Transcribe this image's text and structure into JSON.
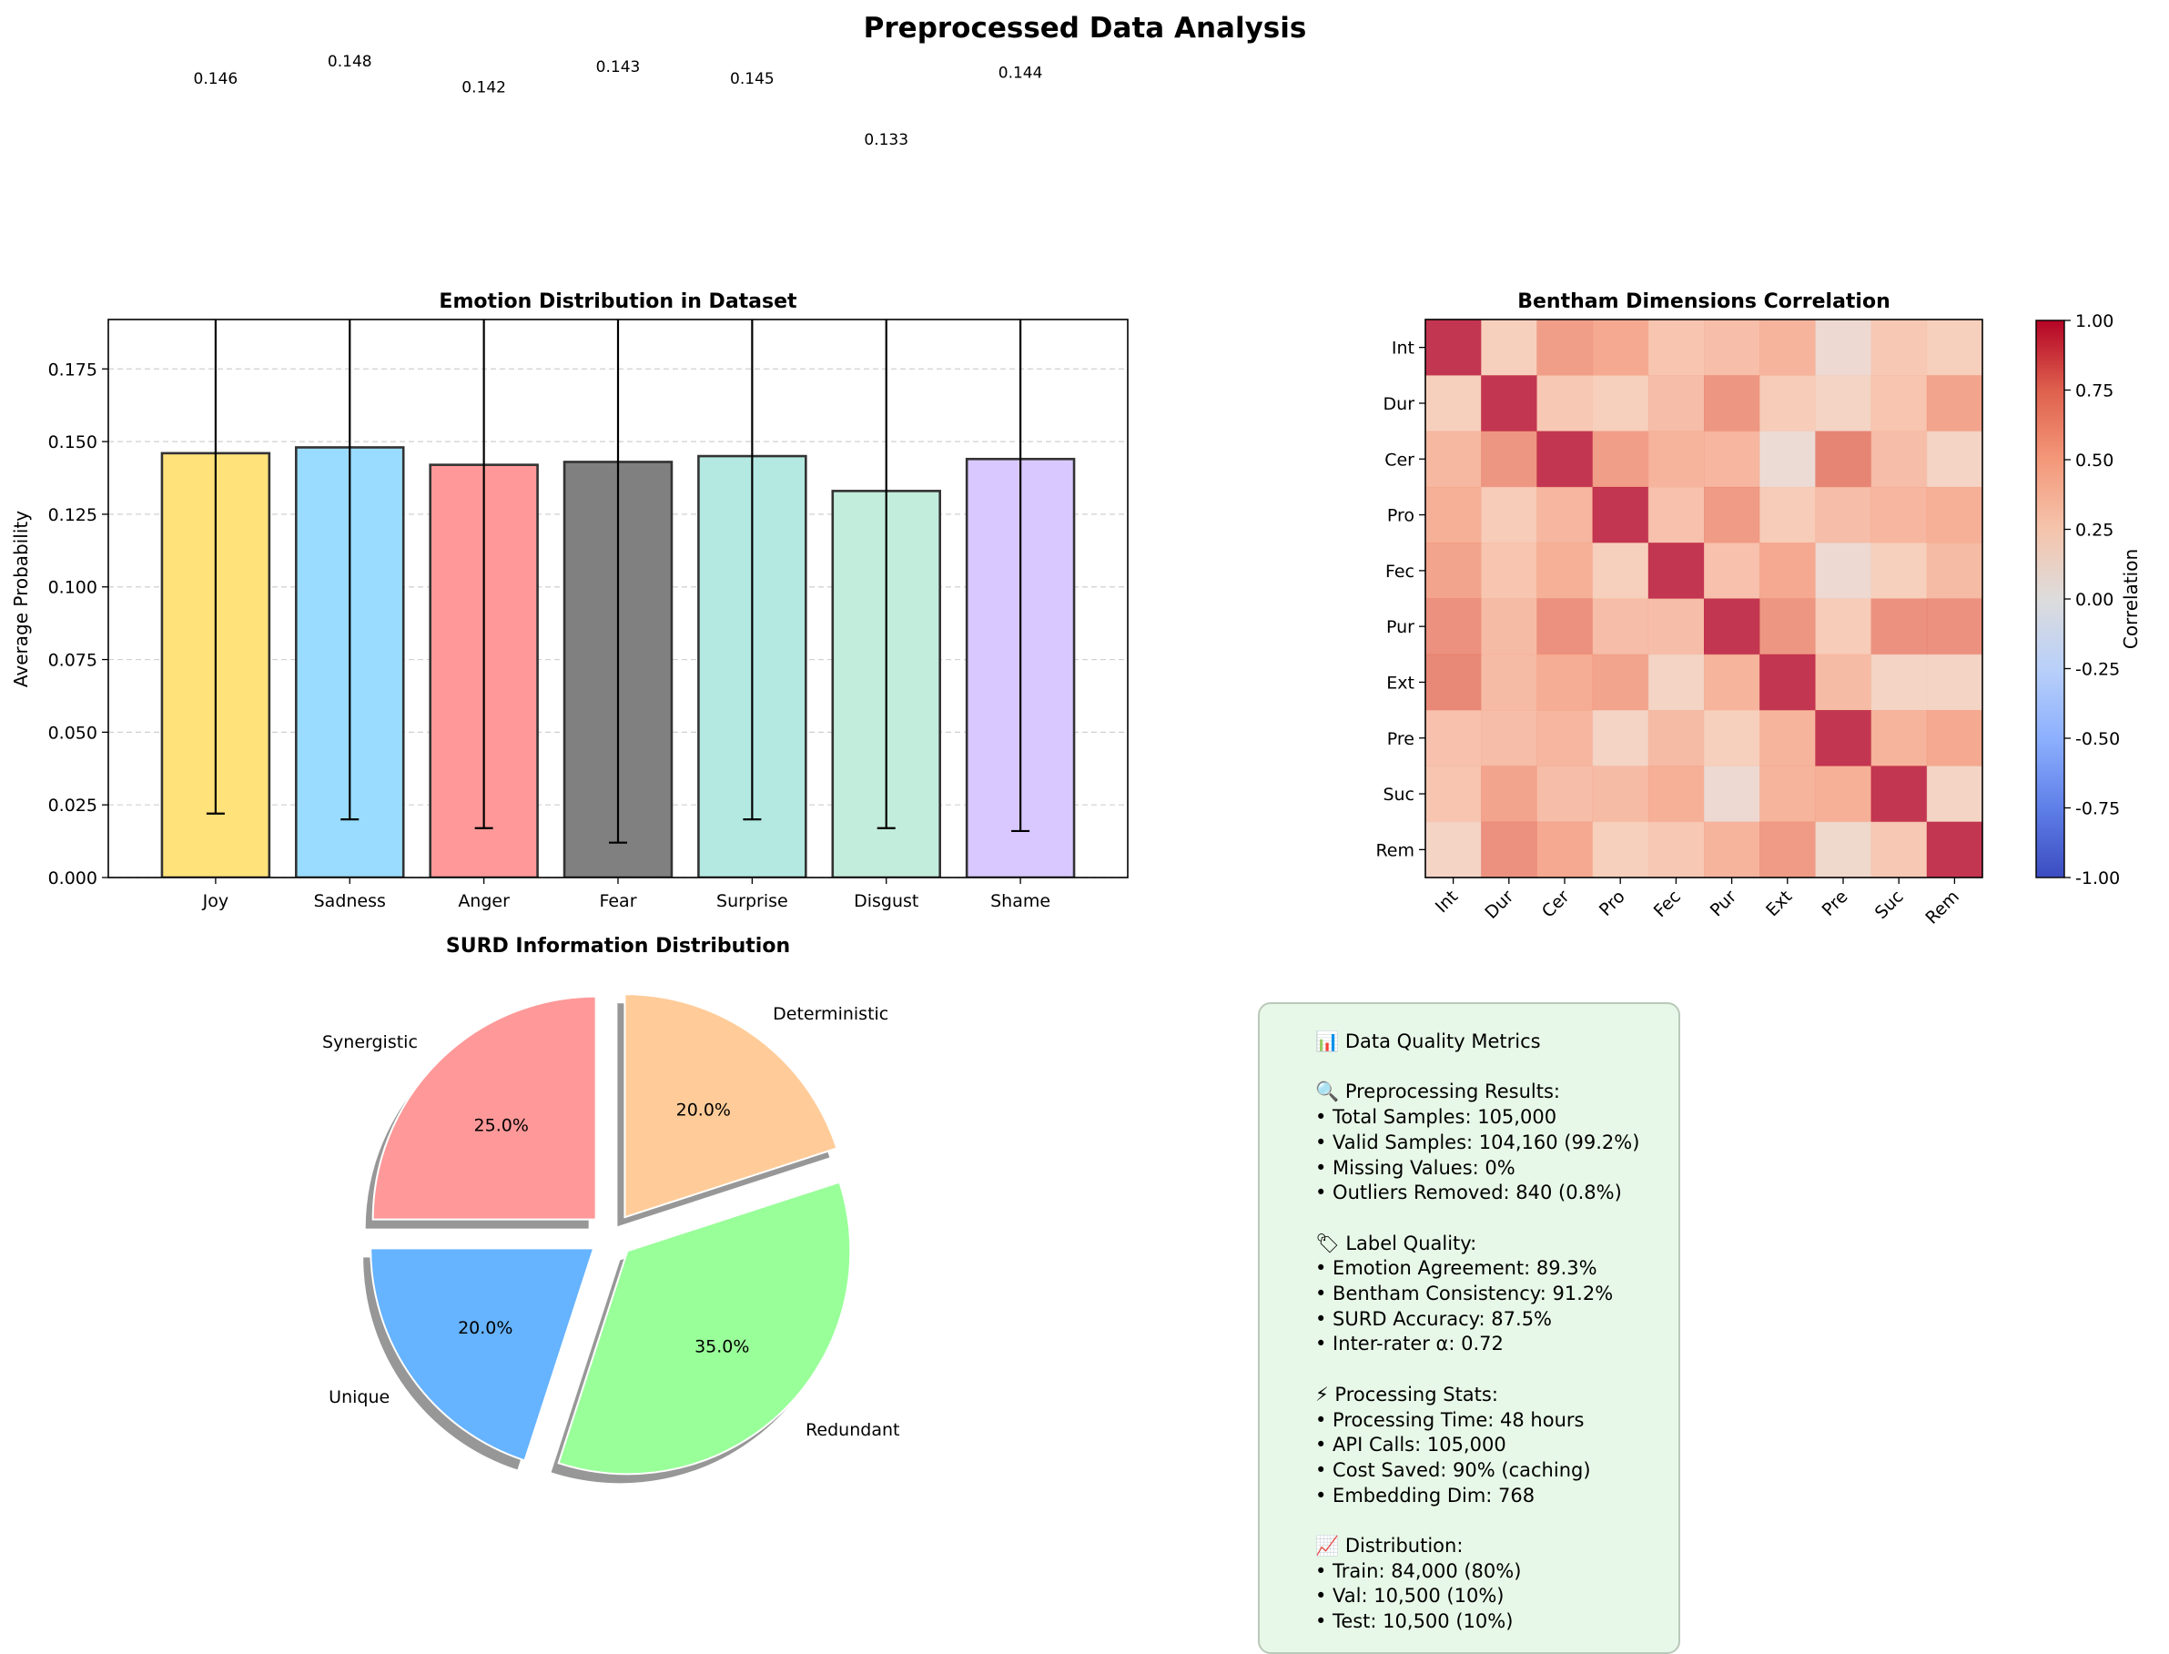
{
  "figure": {
    "suptitle": "Preprocessed Data Analysis"
  },
  "chart_data": [
    {
      "type": "bar",
      "title": "Emotion Distribution in Dataset",
      "xlabel": "",
      "ylabel": "Average Probability",
      "categories": [
        "Joy",
        "Sadness",
        "Anger",
        "Fear",
        "Surprise",
        "Disgust",
        "Shame"
      ],
      "values": [
        0.146,
        0.148,
        0.142,
        0.143,
        0.145,
        0.133,
        0.144
      ],
      "value_labels": [
        "0.146",
        "0.148",
        "0.142",
        "0.143",
        "0.145",
        "0.133",
        "0.144"
      ],
      "error": [
        0.124,
        0.128,
        0.125,
        0.131,
        0.125,
        0.116,
        0.128
      ],
      "colors": [
        "#FFE27A",
        "#99DCFF",
        "#FF9999",
        "#808080",
        "#B3E9E0",
        "#C2EDDC",
        "#D9C8FF"
      ],
      "ylim": [
        0,
        0.192
      ],
      "yticks": [
        "0.000",
        "0.025",
        "0.050",
        "0.075",
        "0.100",
        "0.125",
        "0.150",
        "0.175"
      ],
      "grid": "y-dashed"
    },
    {
      "type": "heatmap",
      "title": "Bentham Dimensions Correlation",
      "rows": [
        "Int",
        "Dur",
        "Cer",
        "Pro",
        "Fec",
        "Pur",
        "Ext",
        "Pre",
        "Suc",
        "Rem"
      ],
      "cols": [
        "Int",
        "Dur",
        "Cer",
        "Pro",
        "Fec",
        "Pur",
        "Ext",
        "Pre",
        "Suc",
        "Rem"
      ],
      "values": [
        [
          1.0,
          0.25,
          0.58,
          0.52,
          0.33,
          0.37,
          0.45,
          0.12,
          0.3,
          0.25
        ],
        [
          0.25,
          1.0,
          0.3,
          0.25,
          0.38,
          0.62,
          0.28,
          0.2,
          0.33,
          0.55
        ],
        [
          0.42,
          0.62,
          1.0,
          0.58,
          0.45,
          0.43,
          0.1,
          0.72,
          0.38,
          0.2
        ],
        [
          0.48,
          0.28,
          0.43,
          1.0,
          0.35,
          0.6,
          0.28,
          0.38,
          0.43,
          0.48
        ],
        [
          0.55,
          0.33,
          0.48,
          0.25,
          1.0,
          0.35,
          0.52,
          0.12,
          0.25,
          0.4
        ],
        [
          0.65,
          0.4,
          0.65,
          0.38,
          0.38,
          1.0,
          0.62,
          0.28,
          0.65,
          0.65
        ],
        [
          0.7,
          0.4,
          0.5,
          0.55,
          0.2,
          0.45,
          1.0,
          0.4,
          0.2,
          0.2
        ],
        [
          0.35,
          0.38,
          0.43,
          0.2,
          0.4,
          0.25,
          0.45,
          1.0,
          0.45,
          0.52
        ],
        [
          0.33,
          0.55,
          0.38,
          0.4,
          0.48,
          0.12,
          0.45,
          0.48,
          1.0,
          0.2
        ],
        [
          0.2,
          0.65,
          0.52,
          0.25,
          0.3,
          0.45,
          0.6,
          0.15,
          0.3,
          1.0
        ]
      ],
      "colorbar": {
        "label": "Correlation",
        "range": [
          -1.0,
          1.0
        ],
        "ticks": [
          "-1.00",
          "-0.75",
          "-0.50",
          "-0.25",
          "0.00",
          "0.25",
          "0.50",
          "0.75",
          "1.00"
        ],
        "colormap": "coolwarm"
      }
    },
    {
      "type": "pie",
      "title": "SURD Information Distribution",
      "labels": [
        "Synergistic",
        "Unique",
        "Redundant",
        "Deterministic"
      ],
      "values": [
        25.0,
        20.0,
        35.0,
        20.0
      ],
      "pct_labels": [
        "25.0%",
        "20.0%",
        "35.0%",
        "20.0%"
      ],
      "colors": [
        "#FF9999",
        "#66B3FF",
        "#99FF99",
        "#FFCC99"
      ],
      "start_angle_deg": 90,
      "explode": true,
      "shadow": true
    }
  ],
  "metrics": {
    "lines": [
      "📊 Data Quality Metrics",
      "",
      "🔍 Preprocessing Results:",
      "• Total Samples: 105,000",
      "• Valid Samples: 104,160 (99.2%)",
      "• Missing Values: 0%",
      "• Outliers Removed: 840 (0.8%)",
      "",
      "🏷 Label Quality:",
      "• Emotion Agreement: 89.3%",
      "• Bentham Consistency: 91.2%",
      "• SURD Accuracy: 87.5%",
      "• Inter-rater α: 0.72",
      "",
      "⚡ Processing Stats:",
      "• Processing Time: 48 hours",
      "• API Calls: 105,000",
      "• Cost Saved: 90% (caching)",
      "• Embedding Dim: 768",
      "",
      "📈 Distribution:",
      "• Train: 84,000 (80%)",
      "• Val: 10,500 (10%)",
      "• Test: 10,500 (10%)"
    ],
    "background": "#e8f8e8"
  }
}
